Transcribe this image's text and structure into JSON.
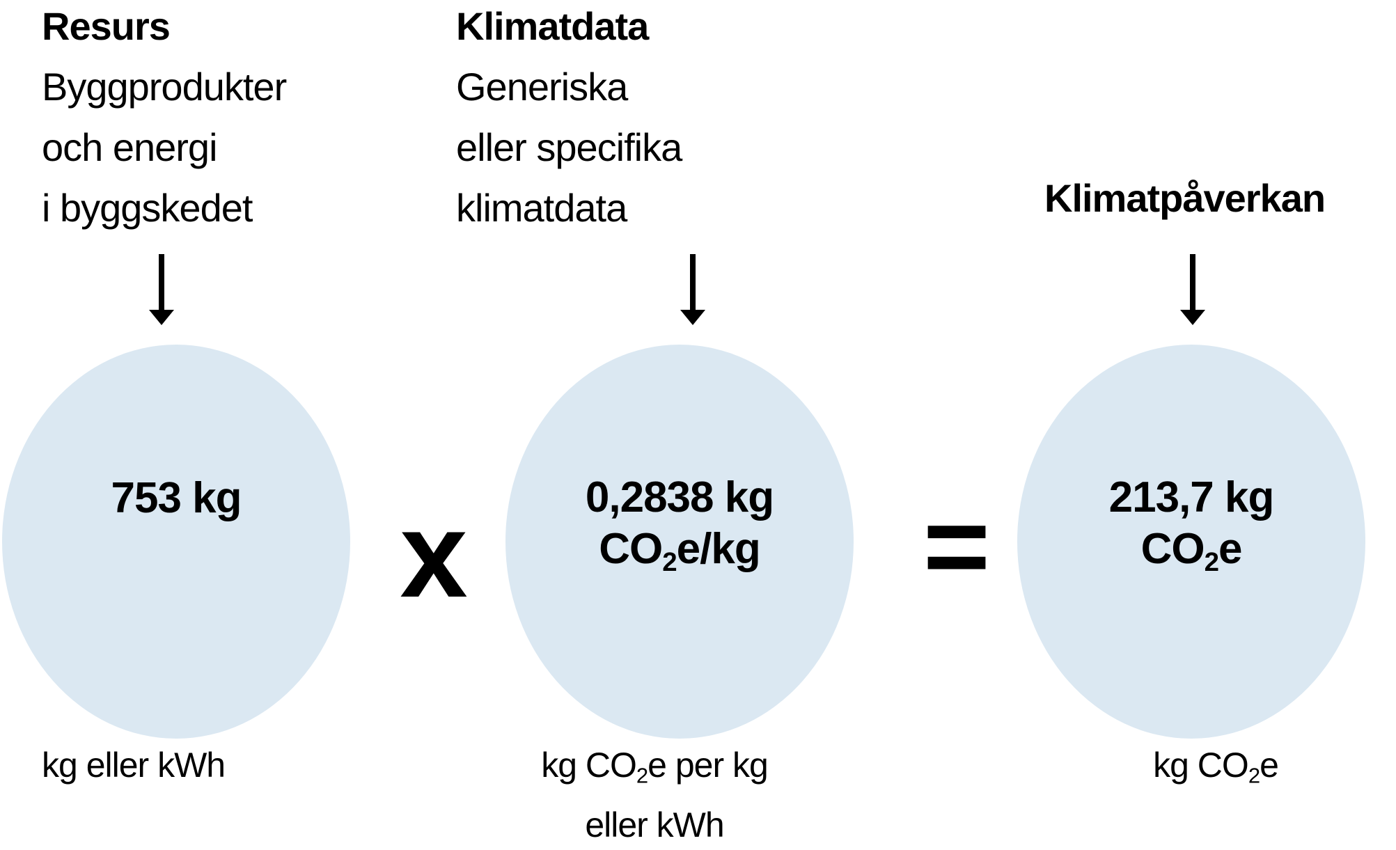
{
  "diagram": {
    "columns": [
      {
        "title": "Resurs",
        "subtitle_lines": [
          "Byggprodukter",
          "och energi",
          "i byggskedet"
        ],
        "circle_text": [
          {
            "text": "753 kg"
          }
        ],
        "unit_label": [
          {
            "text": "kg eller kWh"
          }
        ]
      },
      {
        "title": "Klimatdata",
        "subtitle_lines": [
          "Generiska",
          "eller specifika",
          "klimatdata"
        ],
        "circle_text": [
          {
            "text": "0,2838 kg"
          },
          {
            "break": true
          },
          {
            "text": "CO"
          },
          {
            "sub": "2"
          },
          {
            "text": "e/kg"
          }
        ],
        "unit_label": [
          {
            "text": "kg CO"
          },
          {
            "sub": "2"
          },
          {
            "text": "e per kg"
          },
          {
            "break": true
          },
          {
            "text": "eller kWh"
          }
        ]
      },
      {
        "title": "Klimatpåverkan",
        "subtitle_lines": [],
        "circle_text": [
          {
            "text": "213,7 kg"
          },
          {
            "break": true
          },
          {
            "text": "CO"
          },
          {
            "sub": "2"
          },
          {
            "text": "e"
          }
        ],
        "unit_label": [
          {
            "text": "kg CO"
          },
          {
            "sub": "2"
          },
          {
            "text": "e"
          }
        ]
      }
    ],
    "operators": {
      "multiply": "x",
      "equals": "="
    },
    "colors": {
      "circle_fill": "#dbe8f2",
      "text": "#000000"
    }
  }
}
